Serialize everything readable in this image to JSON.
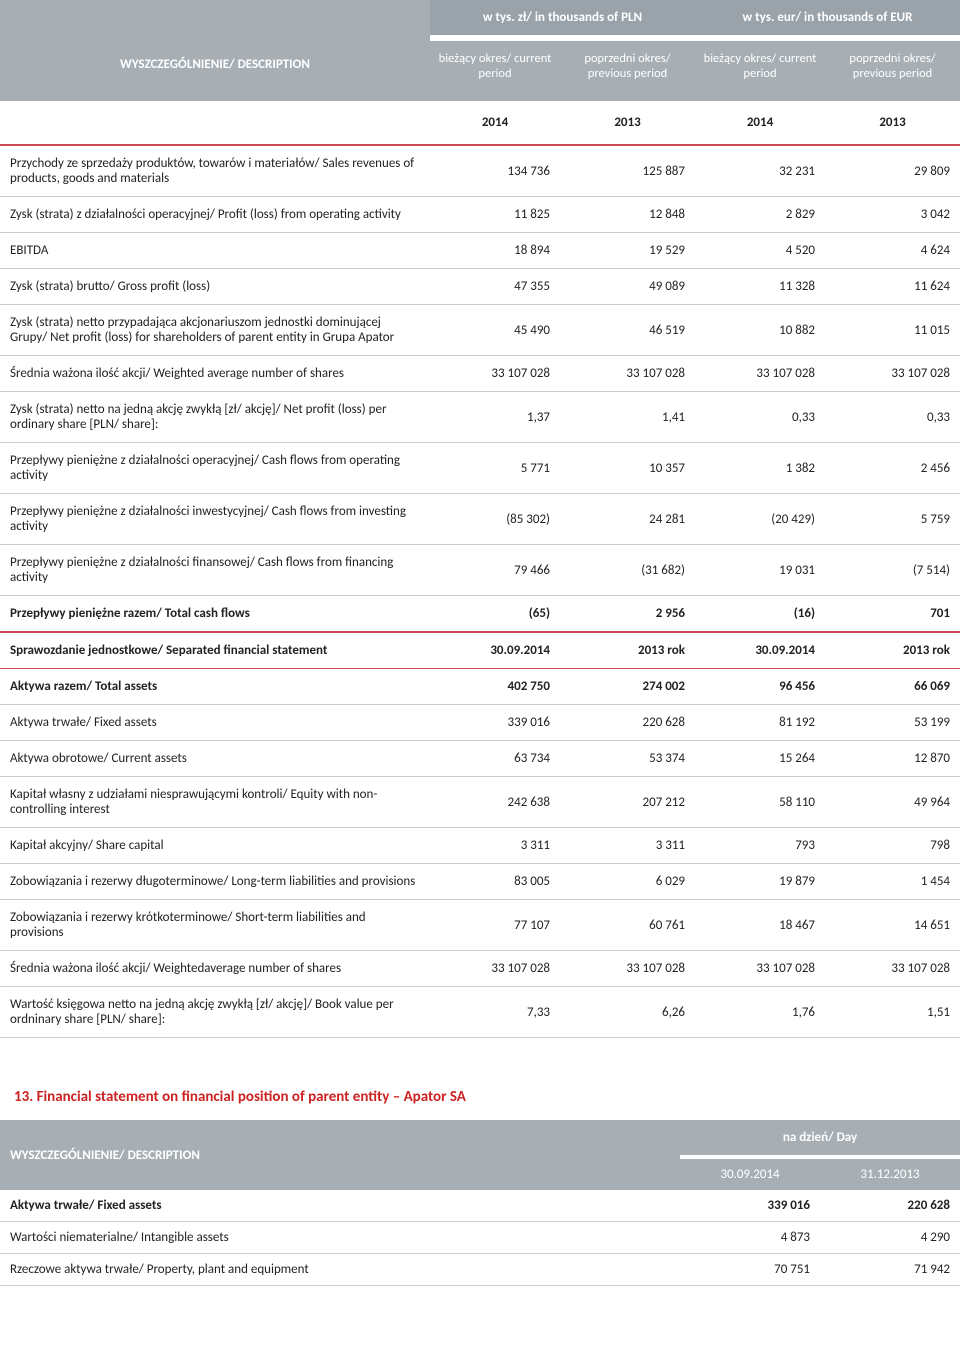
{
  "table1": {
    "groupHeaders": {
      "pln": "w tys. zł/ in thousands of PLN",
      "eur": "w tys. eur/ in thousands of EUR"
    },
    "descriptionHeader": "WYSZCZEGÓLNIENIE/ DESCRIPTION",
    "periodHeaders": {
      "current": "bieżący okres/ current period",
      "previous": "poprzedni okres/ previous period"
    },
    "yearRow": [
      "2014",
      "2013",
      "2014",
      "2013"
    ],
    "rows": [
      {
        "desc": "Przychody ze sprzedaży produktów, towarów i materiałów/ Sales revenues of products, goods and materials",
        "v": [
          "134 736",
          "125 887",
          "32 231",
          "29 809"
        ]
      },
      {
        "desc": "Zysk (strata) z działalności operacyjnej/ Profit (loss) from operating activity",
        "v": [
          "11 825",
          "12 848",
          "2 829",
          "3 042"
        ]
      },
      {
        "desc": "EBITDA",
        "v": [
          "18 894",
          "19 529",
          "4 520",
          "4 624"
        ]
      },
      {
        "desc": "Zysk (strata) brutto/ Gross profit (loss)",
        "v": [
          "47 355",
          "49 089",
          "11 328",
          "11 624"
        ]
      },
      {
        "desc": "Zysk (strata) netto przypadająca akcjonariuszom jednostki dominującej Grupy/ Net profit (loss) for shareholders of parent entity in Grupa Apator",
        "v": [
          "45 490",
          "46 519",
          "10 882",
          "11 015"
        ]
      },
      {
        "desc": "Średnia ważona ilość akcji/ Weighted average number of shares",
        "v": [
          "33 107 028",
          "33 107 028",
          "33 107 028",
          "33 107 028"
        ]
      },
      {
        "desc": "Zysk (strata) netto na jedną akcję zwykłą [zł/ akcję]/ Net profit (loss) per ordinary share [PLN/ share]:",
        "v": [
          "1,37",
          "1,41",
          "0,33",
          "0,33"
        ]
      },
      {
        "desc": "Przepływy pieniężne z działalności operacyjnej/ Cash flows from operating activity",
        "v": [
          "5 771",
          "10 357",
          "1 382",
          "2 456"
        ]
      },
      {
        "desc": "Przepływy pieniężne z działalności inwestycyjnej/ Cash flows from investing activity",
        "v": [
          "(85 302)",
          "24 281",
          "(20 429)",
          "5 759"
        ]
      },
      {
        "desc": "Przepływy pieniężne z działalności finansowej/ Cash flows from financing activity",
        "v": [
          "79 466",
          "(31 682)",
          "19 031",
          "(7 514)"
        ]
      },
      {
        "desc": "Przepływy pieniężne razem/ Total cash flows",
        "v": [
          "(65)",
          "2 956",
          "(16)",
          "701"
        ],
        "bold": true
      }
    ],
    "sectionRow": {
      "desc": "Sprawozdanie jednostkowe/ Separated financial statement",
      "v": [
        "30.09.2014",
        "2013 rok",
        "30.09.2014",
        "2013 rok"
      ]
    },
    "rows2": [
      {
        "desc": "Aktywa razem/ Total assets",
        "v": [
          "402 750",
          "274 002",
          "96 456",
          "66 069"
        ],
        "bold": true
      },
      {
        "desc": "Aktywa trwałe/ Fixed assets",
        "v": [
          "339 016",
          "220 628",
          "81 192",
          "53 199"
        ]
      },
      {
        "desc": "Aktywa obrotowe/ Current assets",
        "v": [
          "63 734",
          "53 374",
          "15 264",
          "12 870"
        ]
      },
      {
        "desc": "Kapitał własny z udziałami niesprawującymi kontroli/ Equity with non-controlling interest",
        "v": [
          "242 638",
          "207 212",
          "58 110",
          "49 964"
        ]
      },
      {
        "desc": "Kapitał akcyjny/ Share capital",
        "v": [
          "3 311",
          "3 311",
          "793",
          "798"
        ]
      },
      {
        "desc": "Zobowiązania i rezerwy długoterminowe/ Long-term liabilities and provisions",
        "v": [
          "83 005",
          "6 029",
          "19 879",
          "1 454"
        ]
      },
      {
        "desc": "Zobowiązania i rezerwy krótkoterminowe/ Short-term liabilities and provisions",
        "v": [
          "77 107",
          "60 761",
          "18 467",
          "14 651"
        ]
      },
      {
        "desc": "Średnia ważona ilość akcji/ Weightedaverage number of shares",
        "v": [
          "33 107 028",
          "33 107 028",
          "33 107 028",
          "33 107 028"
        ]
      },
      {
        "desc": "Wartość księgowa netto na jedną akcję zwykłą [zł/ akcję]/ Book value per ordninary share [PLN/ share]:",
        "v": [
          "7,33",
          "6,26",
          "1,76",
          "1,51"
        ]
      }
    ]
  },
  "sectionTitle": "13. Financial statement on financial position of parent entity – Apator SA",
  "table2": {
    "descriptionHeader": "WYSZCZEGÓLNIENIE/ DESCRIPTION",
    "groupHeader": "na dzień/ Day",
    "cols": [
      "30.09.2014",
      "31.12.2013"
    ],
    "rows": [
      {
        "desc": "Aktywa trwałe/ Fixed assets",
        "v": [
          "339 016",
          "220 628"
        ],
        "bold": true
      },
      {
        "desc": "Wartości niematerialne/ Intangible assets",
        "v": [
          "4 873",
          "4 290"
        ],
        "indent": true
      },
      {
        "desc": "Rzeczowe aktywa trwałe/ Property, plant and equipment",
        "v": [
          "70 751",
          "71 942"
        ],
        "indent": true
      }
    ]
  }
}
